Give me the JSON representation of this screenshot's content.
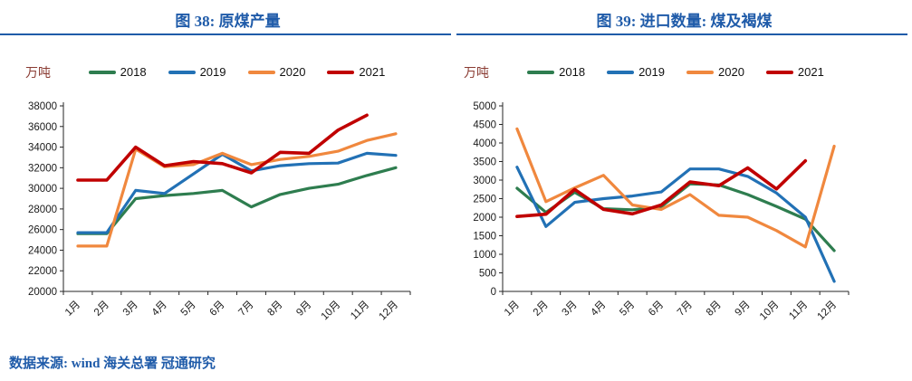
{
  "footer": {
    "text": "数据来源: wind 海关总署 冠通研究"
  },
  "colors": {
    "title_blue": "#1f5ba9",
    "unit_red": "#8a3b32",
    "axis": "#262626"
  },
  "chart_data": [
    {
      "type": "line",
      "title": "图 38: 原煤产量",
      "ylabel": "万吨",
      "xlabel": "",
      "categories": [
        "1月",
        "2月",
        "3月",
        "4月",
        "5月",
        "6月",
        "7月",
        "8月",
        "9月",
        "10月",
        "11月",
        "12月"
      ],
      "ylim": [
        20000,
        38000
      ],
      "ytick_step": 2000,
      "grid": false,
      "legend_position": "top",
      "series": [
        {
          "name": "2018",
          "color": "#2e7d4f",
          "values": [
            25600,
            25600,
            29000,
            29300,
            29500,
            29800,
            28200,
            29400,
            30000,
            30400,
            31250,
            32000
          ]
        },
        {
          "name": "2019",
          "color": "#2271b5",
          "values": [
            25700,
            25700,
            29800,
            29500,
            31400,
            33300,
            31700,
            32200,
            32400,
            32450,
            33400,
            33200
          ]
        },
        {
          "name": "2020",
          "color": "#f0883e",
          "values": [
            24400,
            24400,
            33800,
            32100,
            32300,
            33400,
            32300,
            32800,
            33100,
            33600,
            34650,
            35300
          ]
        },
        {
          "name": "2021",
          "color": "#c00000",
          "values": [
            30800,
            30800,
            34000,
            32200,
            32600,
            32400,
            31500,
            33500,
            33400,
            35650,
            37100,
            null
          ]
        }
      ]
    },
    {
      "type": "line",
      "title": "图 39: 进口数量: 煤及褐煤",
      "ylabel": "万吨",
      "xlabel": "",
      "categories": [
        "1月",
        "2月",
        "3月",
        "4月",
        "5月",
        "6月",
        "7月",
        "8月",
        "9月",
        "10月",
        "11月",
        "12月"
      ],
      "ylim": [
        0,
        5000
      ],
      "ytick_step": 500,
      "grid": false,
      "legend_position": "top",
      "series": [
        {
          "name": "2018",
          "color": "#2e7d4f",
          "values": [
            2780,
            2130,
            2670,
            2230,
            2200,
            2280,
            2900,
            2870,
            2610,
            2290,
            1950,
            1100
          ]
        },
        {
          "name": "2019",
          "color": "#2271b5",
          "values": [
            3350,
            1750,
            2400,
            2500,
            2570,
            2680,
            3300,
            3300,
            3100,
            2650,
            2000,
            270
          ]
        },
        {
          "name": "2020",
          "color": "#f0883e",
          "values": [
            4380,
            2420,
            2790,
            3130,
            2330,
            2210,
            2610,
            2050,
            2000,
            1640,
            1200,
            3915
          ]
        },
        {
          "name": "2021",
          "color": "#c00000",
          "values": [
            2020,
            2080,
            2750,
            2210,
            2090,
            2330,
            2950,
            2850,
            3330,
            2760,
            3520,
            null
          ]
        }
      ]
    }
  ]
}
